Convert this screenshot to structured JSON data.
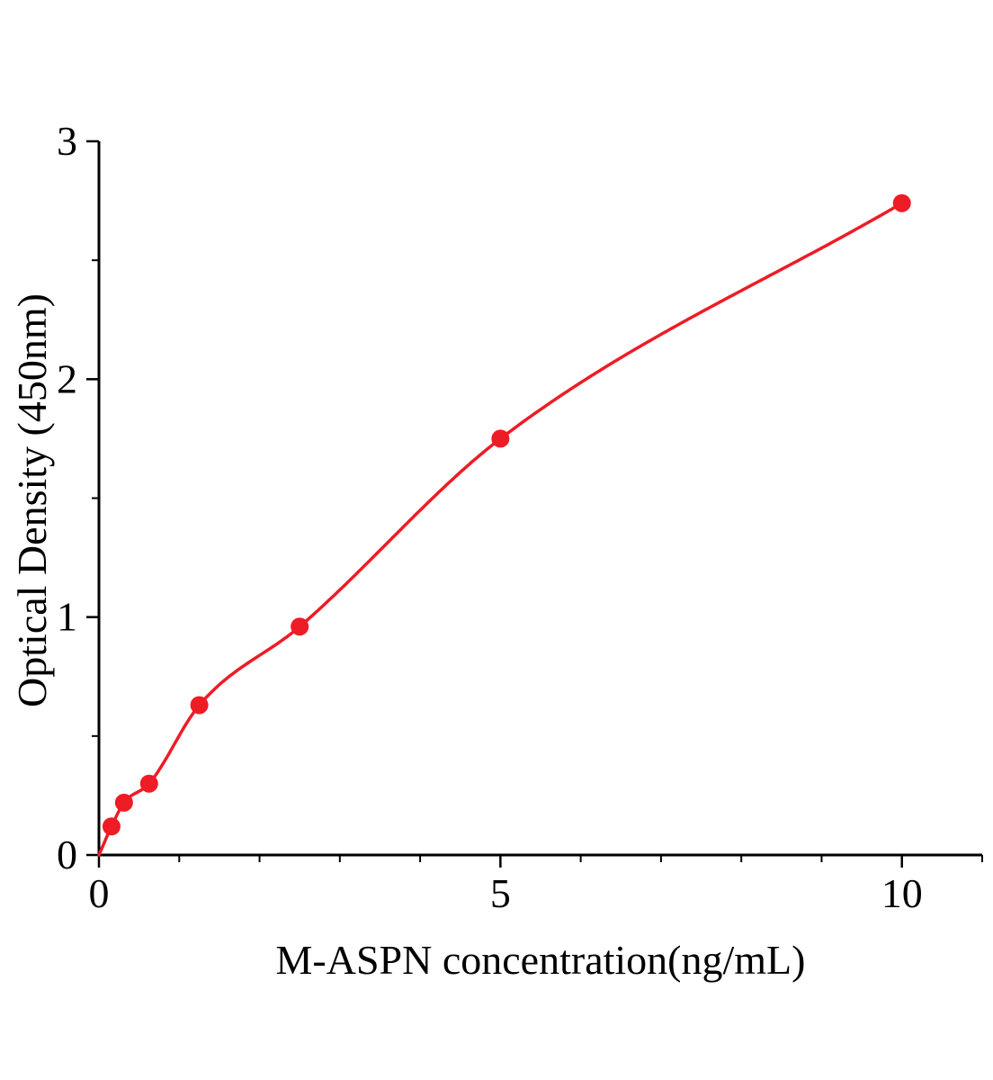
{
  "chart_data": {
    "type": "line",
    "title": "",
    "xlabel": "M-ASPN concentration(ng/mL)",
    "ylabel": "Optical Density (450nm)",
    "x": [
      0.156,
      0.312,
      0.625,
      1.25,
      2.5,
      5,
      10
    ],
    "y": [
      0.12,
      0.22,
      0.3,
      0.63,
      0.96,
      1.75,
      2.74
    ],
    "curve_anchor": [
      0,
      0
    ],
    "xlim": [
      0,
      11
    ],
    "ylim": [
      0,
      3
    ],
    "x_ticks": [
      0,
      5,
      10
    ],
    "y_ticks": [
      0,
      1,
      2,
      3
    ],
    "x_minor_tick_step": 1,
    "y_minor_tick_step": 0.5,
    "grid": false,
    "legend": "none",
    "marker": "circle",
    "line_color": "#ee1c25",
    "marker_color": "#ee1c25",
    "axis_color": "#000000",
    "background": "#ffffff"
  }
}
